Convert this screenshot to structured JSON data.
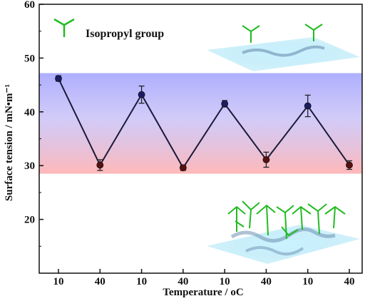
{
  "chart_data": {
    "type": "line",
    "xlabel_text": "Temperature / ",
    "xlabel_unit": "oC",
    "ylabel": "Surface tension / mN•m⁻¹",
    "categories": [
      "10",
      "40",
      "10",
      "40",
      "10",
      "40",
      "10",
      "40"
    ],
    "values": [
      46.2,
      30.1,
      43.2,
      29.6,
      41.5,
      31.1,
      41.1,
      30.1
    ],
    "errors": [
      0.5,
      1.0,
      1.6,
      0.5,
      0.6,
      1.4,
      2.0,
      0.8
    ],
    "ylim": [
      10,
      60
    ],
    "yticks": [
      20,
      30,
      40,
      50,
      60
    ],
    "band_range": [
      28.5,
      47.2
    ],
    "legend_label": "Isopropyl group",
    "colors": {
      "line": "#1a1a3a",
      "marker_top": "#1c1c66",
      "marker_bottom": "#5a0f0f",
      "band_top": "#6a6cff",
      "band_bottom": "#ff8a8a",
      "molecule": "#22bb22",
      "sheet": "#7fd6f0"
    }
  }
}
